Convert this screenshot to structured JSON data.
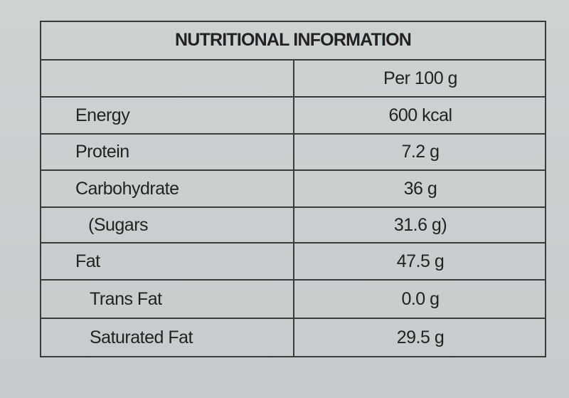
{
  "table": {
    "title": "NUTRITIONAL INFORMATION",
    "column_header": "Per 100 g",
    "rows": [
      [
        "Energy",
        "600 kcal"
      ],
      [
        "Protein",
        "7.2 g"
      ],
      [
        "Carbohydrate",
        "36 g"
      ],
      [
        "(Sugars",
        "31.6 g)"
      ],
      [
        "Fat",
        "47.5 g"
      ],
      [
        "Trans Fat",
        "0.0 g"
      ],
      [
        "Saturated Fat",
        "29.5 g"
      ]
    ]
  }
}
